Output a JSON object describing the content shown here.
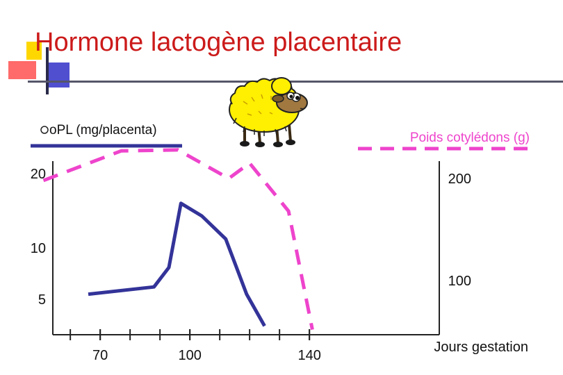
{
  "slide": {
    "title": "Hormone lactogène placentaire"
  },
  "chart_data": {
    "type": "line",
    "x_label": "Jours gestation",
    "x_ticks": [
      70,
      100,
      140
    ],
    "y_left_ticks": [
      5,
      10,
      20
    ],
    "y_right_ticks": [
      100,
      200
    ],
    "series": [
      {
        "name": "oPL (mg/placenta)",
        "style": "solid",
        "color": "#333399",
        "axis": "left",
        "points": [
          [
            66,
            5.5
          ],
          [
            88,
            6.2
          ],
          [
            93,
            8.1
          ],
          [
            97,
            16
          ],
          [
            104,
            14.3
          ],
          [
            112,
            11.2
          ],
          [
            119,
            5.5
          ],
          [
            125,
            4.4
          ]
        ]
      },
      {
        "name": "Poids cotylédons (g)",
        "style": "dashed",
        "color": "#ee44cc",
        "axis": "right",
        "points": [
          [
            51,
            198
          ],
          [
            77,
            227
          ],
          [
            96,
            228
          ],
          [
            113,
            200
          ],
          [
            120,
            215
          ],
          [
            133,
            168
          ],
          [
            141,
            52
          ]
        ]
      }
    ],
    "legend": {
      "left_label": "oPL (mg/placenta)",
      "right_label": "Poids cotylédons (g)"
    }
  },
  "colors": {
    "title": "#cc1a1a",
    "opl_line": "#333399",
    "cotyledon_line": "#ee44cc",
    "axis": "#222222"
  },
  "decorations": {
    "sheep": "sheep-icon"
  }
}
